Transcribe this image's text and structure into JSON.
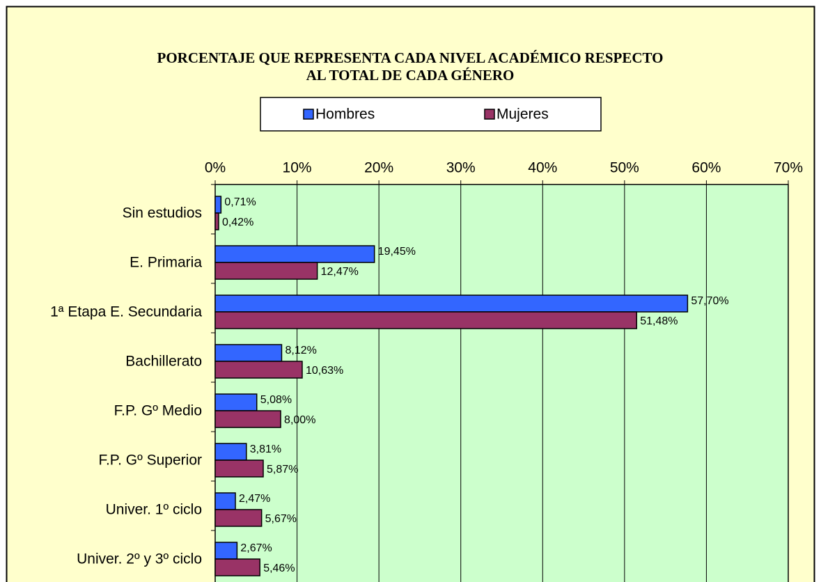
{
  "chart_data": {
    "type": "hbar",
    "title": [
      "PORCENTAJE QUE REPRESENTA CADA NIVEL ACADÉMICO RESPECTO",
      "AL TOTAL DE CADA GÉNERO"
    ],
    "categories": [
      "Sin estudios",
      "E. Primaria",
      "1ª Etapa E. Secundaria",
      "Bachillerato",
      "F.P. Gº Medio",
      "F.P. Gº Superior",
      "Univer. 1º ciclo",
      "Univer. 2º y 3º ciclo"
    ],
    "series": [
      {
        "name": "Hombres",
        "color": "#3366ff",
        "values": [
          0.71,
          19.45,
          57.7,
          8.12,
          5.08,
          3.81,
          2.47,
          2.67
        ],
        "value_labels": [
          "0,71%",
          "19,45%",
          "57,70%",
          "8,12%",
          "5,08%",
          "3,81%",
          "2,47%",
          "2,67%"
        ]
      },
      {
        "name": "Mujeres",
        "color": "#993366",
        "values": [
          0.42,
          12.47,
          51.48,
          10.63,
          8.0,
          5.87,
          5.67,
          5.46
        ],
        "value_labels": [
          "0,42%",
          "12,47%",
          "51,48%",
          "10,63%",
          "8,00%",
          "5,87%",
          "5,67%",
          "5,46%"
        ]
      }
    ],
    "xlim": [
      0,
      70
    ],
    "xticks": [
      {
        "value": 0,
        "label": "0%"
      },
      {
        "value": 10,
        "label": "10%"
      },
      {
        "value": 20,
        "label": "20%"
      },
      {
        "value": 30,
        "label": "30%"
      },
      {
        "value": 40,
        "label": "40%"
      },
      {
        "value": 50,
        "label": "50%"
      },
      {
        "value": 60,
        "label": "60%"
      },
      {
        "value": 70,
        "label": "70%"
      }
    ],
    "grid": true,
    "legend": "top"
  }
}
